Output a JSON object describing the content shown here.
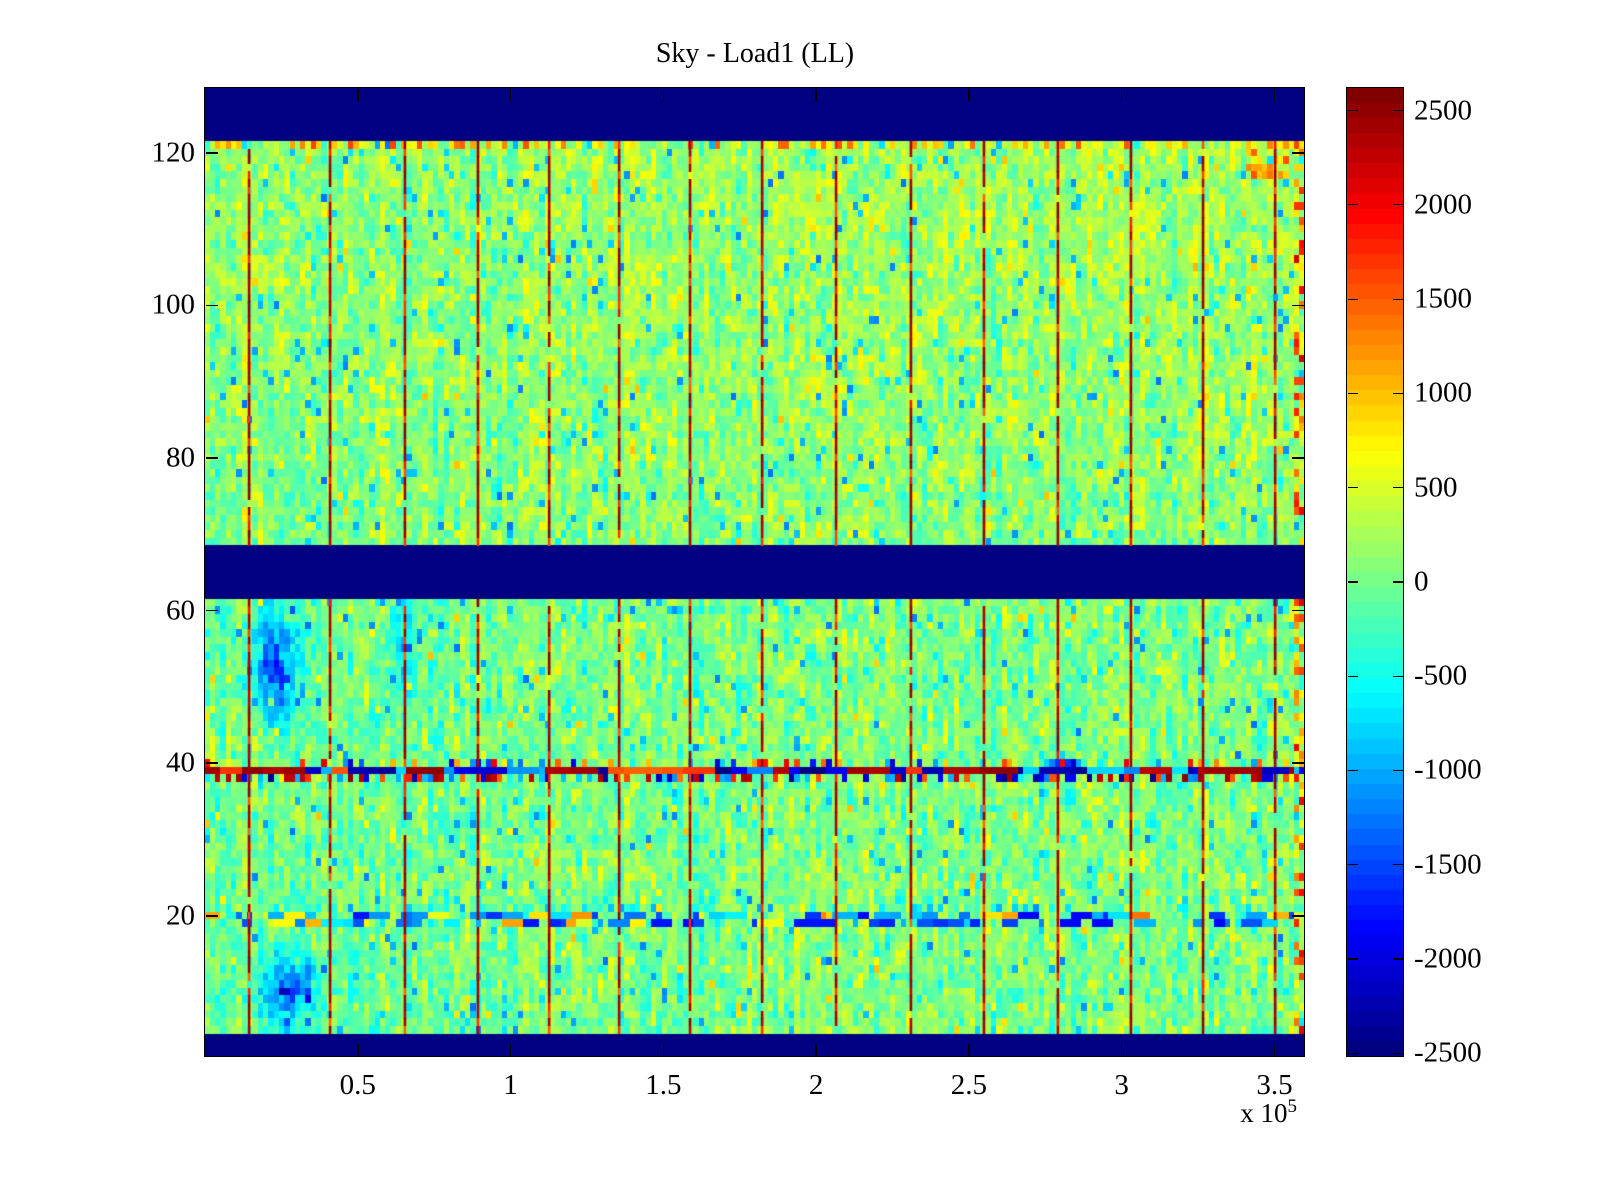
{
  "figure": {
    "background": "#ffffff"
  },
  "chart_data": {
    "type": "heatmap",
    "title": "Sky - Load1 (LL)",
    "x": {
      "range_e5": [
        0,
        3.6
      ],
      "tick_values_e5": [
        0.5,
        1,
        1.5,
        2,
        2.5,
        3,
        3.5
      ],
      "tick_labels": [
        "0.5",
        "1",
        "1.5",
        "2",
        "2.5",
        "3",
        "3.5"
      ],
      "scale_label_prefix": "x 10",
      "scale_label_exponent": "5"
    },
    "y": {
      "range": [
        1.5,
        128.5
      ],
      "tick_values": [
        20,
        40,
        60,
        80,
        100,
        120
      ],
      "tick_labels": [
        "20",
        "40",
        "60",
        "80",
        "100",
        "120"
      ]
    },
    "colorbar": {
      "colormap": "jet",
      "levels": 64,
      "value_range": [
        -2520,
        2620
      ],
      "tick_values": [
        2500,
        2000,
        1500,
        1000,
        500,
        0,
        -500,
        -1000,
        -1500,
        -2000,
        -2500
      ],
      "tick_labels": [
        "2500",
        "2000",
        "1500",
        "1000",
        "500",
        "0",
        "-500",
        "-1000",
        "-1500",
        "-2000",
        "-2500"
      ]
    },
    "grid": {
      "columns": 207,
      "rows": 127
    },
    "features": {
      "background_noise": {
        "mean": 60,
        "std": 350,
        "units": "colorbar value"
      },
      "solid_band_value": -2520,
      "solid_band_rows": [
        [
          122,
          128
        ],
        [
          62,
          68
        ],
        [
          1,
          4
        ]
      ],
      "striped_interference_row": 39,
      "striped_secondary_row": 38,
      "scatter_fleck_row": 40,
      "noisy_blue_rows": [
        19,
        20,
        21
      ],
      "hot_row_below_top_band": 121,
      "vertical_line_positions_e5": [
        0.144,
        0.409,
        0.654,
        0.893,
        1.126,
        1.355,
        1.587,
        1.823,
        2.065,
        2.31,
        2.549,
        2.791,
        3.03,
        3.266,
        3.502
      ],
      "vertical_line_value": 2400,
      "right_edge_hot_column": true,
      "blue_blobs": [
        {
          "col": 13,
          "row": 53,
          "sx": 4.5,
          "sy": 7.0,
          "amp": -1400
        },
        {
          "col": 15,
          "row": 10.5,
          "sx": 5.5,
          "sy": 4.5,
          "amp": -1400
        },
        {
          "col": 37,
          "row": 54,
          "sx": 2.5,
          "sy": 8.0,
          "amp": -700
        }
      ]
    },
    "colors": {
      "band_navy": "#000080",
      "line_dark_red": "#a00000",
      "axis": "#000000"
    }
  }
}
